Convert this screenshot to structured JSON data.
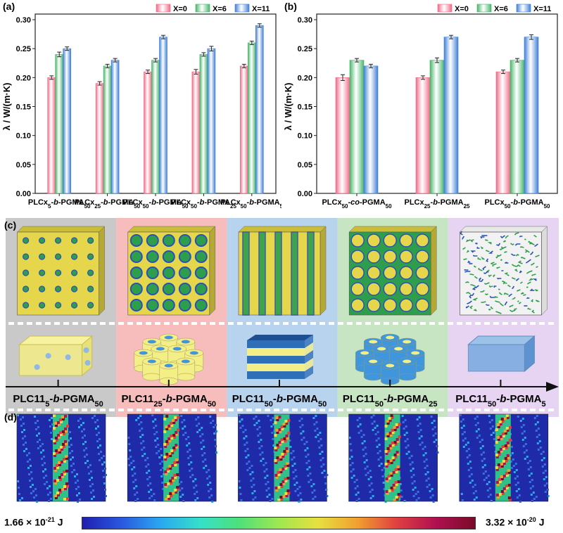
{
  "chart_data": [
    {
      "type": "bar",
      "panel_label": "(a)",
      "ylabel": "λ / W/(m·K)",
      "ylim": [
        0,
        0.3
      ],
      "yticks": [
        "0.00",
        "0.05",
        "0.10",
        "0.15",
        "0.20",
        "0.25",
        "0.30"
      ],
      "legend_position": "top-right",
      "categories": [
        {
          "parts": [
            [
              "PLCx",
              ""
            ],
            [
              "5",
              "sub"
            ],
            [
              "-",
              ""
            ],
            [
              "b",
              "i"
            ],
            [
              "-PGMA",
              ""
            ],
            [
              "50",
              "sub"
            ]
          ]
        },
        {
          "parts": [
            [
              "PLCx",
              ""
            ],
            [
              "25",
              "sub"
            ],
            [
              "-",
              ""
            ],
            [
              "b",
              "i"
            ],
            [
              "-PGMA",
              ""
            ],
            [
              "50",
              "sub"
            ]
          ]
        },
        {
          "parts": [
            [
              "PLCx",
              ""
            ],
            [
              "50",
              "sub"
            ],
            [
              "-",
              ""
            ],
            [
              "b",
              "i"
            ],
            [
              "-PGMA",
              ""
            ],
            [
              "50",
              "sub"
            ]
          ]
        },
        {
          "parts": [
            [
              "PLCx",
              ""
            ],
            [
              "50",
              "sub"
            ],
            [
              "-",
              ""
            ],
            [
              "b",
              "i"
            ],
            [
              "-PGMA",
              ""
            ],
            [
              "25",
              "sub"
            ]
          ]
        },
        {
          "parts": [
            [
              "PLCx",
              ""
            ],
            [
              "50",
              "sub"
            ],
            [
              "-",
              ""
            ],
            [
              "b",
              "i"
            ],
            [
              "-PGMA",
              ""
            ],
            [
              "5",
              "sub"
            ]
          ]
        }
      ],
      "series": [
        {
          "name": "X=0",
          "values": [
            0.2,
            0.19,
            0.21,
            0.21,
            0.22
          ],
          "errors": [
            0.003,
            0.003,
            0.003,
            0.004,
            0.003
          ],
          "color": "#f06a87"
        },
        {
          "name": "X=6",
          "values": [
            0.24,
            0.22,
            0.23,
            0.24,
            0.26
          ],
          "errors": [
            0.004,
            0.003,
            0.003,
            0.003,
            0.003
          ],
          "color": "#47b56a"
        },
        {
          "name": "X=11",
          "values": [
            0.25,
            0.23,
            0.27,
            0.25,
            0.29
          ],
          "errors": [
            0.003,
            0.003,
            0.003,
            0.004,
            0.003
          ],
          "color": "#3f7fd6"
        }
      ]
    },
    {
      "type": "bar",
      "panel_label": "(b)",
      "ylabel": "λ / W/(m·K)",
      "ylim": [
        0,
        0.3
      ],
      "yticks": [
        "0.00",
        "0.05",
        "0.10",
        "0.15",
        "0.20",
        "0.25",
        "0.30"
      ],
      "legend_position": "top-right",
      "categories": [
        {
          "parts": [
            [
              "PLCx",
              ""
            ],
            [
              "50",
              "sub"
            ],
            [
              "-",
              ""
            ],
            [
              "co",
              "i"
            ],
            [
              "-PGMA",
              ""
            ],
            [
              "50",
              "sub"
            ]
          ]
        },
        {
          "parts": [
            [
              "PLCx",
              ""
            ],
            [
              "25",
              "sub"
            ],
            [
              "-",
              ""
            ],
            [
              "b",
              "i"
            ],
            [
              "-PGMA",
              ""
            ],
            [
              "25",
              "sub"
            ]
          ]
        },
        {
          "parts": [
            [
              "PLCx",
              ""
            ],
            [
              "50",
              "sub"
            ],
            [
              "-",
              ""
            ],
            [
              "b",
              "i"
            ],
            [
              "-PGMA",
              ""
            ],
            [
              "50",
              "sub"
            ]
          ]
        }
      ],
      "series": [
        {
          "name": "X=0",
          "values": [
            0.2,
            0.2,
            0.21
          ],
          "errors": [
            0.005,
            0.003,
            0.003
          ],
          "color": "#f06a87"
        },
        {
          "name": "X=6",
          "values": [
            0.23,
            0.23,
            0.23
          ],
          "errors": [
            0.003,
            0.004,
            0.003
          ],
          "color": "#47b56a"
        },
        {
          "name": "X=11",
          "values": [
            0.22,
            0.27,
            0.27
          ],
          "errors": [
            0.003,
            0.003,
            0.004
          ],
          "color": "#3f7fd6"
        }
      ]
    }
  ],
  "panel_c": {
    "label": "(c)",
    "band_colors": [
      "#c9c9c9",
      "#f7bcbc",
      "#b7d3ee",
      "#c8e5c3",
      "#e6d4f2"
    ],
    "morphologies": [
      "spheres",
      "cylinders",
      "lamellae",
      "inverse-cylinders",
      "disordered"
    ],
    "structure_colors": {
      "matrix": "#e6d64c",
      "domain_green": "#2e9e4c",
      "domain_blue": "#2851b8",
      "model_yellow": "#f4ee86",
      "model_blue": "#3f96dc"
    },
    "axis_labels": [
      {
        "parts": [
          [
            "PLC11",
            ""
          ],
          [
            "5",
            "sub"
          ],
          [
            "-",
            ""
          ],
          [
            "b",
            "i"
          ],
          [
            "-PGMA",
            ""
          ],
          [
            "50",
            "sub"
          ]
        ]
      },
      {
        "parts": [
          [
            "PLC11",
            ""
          ],
          [
            "25",
            "sub"
          ],
          [
            "-",
            ""
          ],
          [
            "b",
            "i"
          ],
          [
            "-PGMA",
            ""
          ],
          [
            "50",
            "sub"
          ]
        ]
      },
      {
        "parts": [
          [
            "PLC11",
            ""
          ],
          [
            "50",
            "sub"
          ],
          [
            "-",
            ""
          ],
          [
            "b",
            "i"
          ],
          [
            "-PGMA",
            ""
          ],
          [
            "50",
            "sub"
          ]
        ]
      },
      {
        "parts": [
          [
            "PLC11",
            ""
          ],
          [
            "50",
            "sub"
          ],
          [
            "-",
            ""
          ],
          [
            "b",
            "i"
          ],
          [
            "-PGMA",
            ""
          ],
          [
            "25",
            "sub"
          ]
        ]
      },
      {
        "parts": [
          [
            "PLC11",
            ""
          ],
          [
            "50",
            "sub"
          ],
          [
            "-",
            ""
          ],
          [
            "b",
            "i"
          ],
          [
            "-PGMA",
            ""
          ],
          [
            "5",
            "sub"
          ]
        ]
      }
    ]
  },
  "panel_d": {
    "label": "(d)",
    "maps": [
      "map-1",
      "map-2",
      "map-3",
      "map-4",
      "map-5"
    ]
  },
  "colorbar": {
    "min_label": "1.66 × 10",
    "min_exp": "-21",
    "max_label": "3.32 × 10",
    "max_exp": "-20",
    "unit": "J",
    "colors": [
      "#1e1fb0",
      "#2a58e0",
      "#2aa8f0",
      "#35e0c8",
      "#4fe07a",
      "#9ee850",
      "#e8e040",
      "#f0a030",
      "#e04040",
      "#b01050",
      "#7a0a2a"
    ]
  }
}
